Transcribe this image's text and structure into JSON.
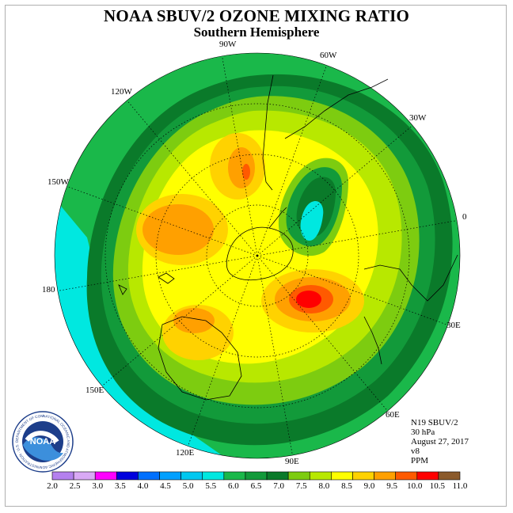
{
  "title": "NOAA SBUV/2 OZONE MIXING RATIO",
  "subtitle": "Southern Hemisphere",
  "longitude_labels": [
    "90W",
    "60W",
    "30W",
    "0",
    "30E",
    "60E",
    "90E",
    "120E",
    "150E",
    "180",
    "150W",
    "120W"
  ],
  "info": {
    "satellite": "N19 SBUV/2",
    "pressure": "30 hPa",
    "date": "August 27, 2017",
    "version": "v8",
    "units": "PPM"
  },
  "colorbar": {
    "labels": [
      "2.0",
      "2.5",
      "3.0",
      "3.5",
      "4.0",
      "4.5",
      "5.0",
      "5.5",
      "6.0",
      "6.5",
      "7.0",
      "7.5",
      "8.0",
      "8.5",
      "9.0",
      "9.5",
      "10.0",
      "10.5",
      "11.0"
    ],
    "colors": [
      "#b480ee",
      "#d9a9f5",
      "#ff00ff",
      "#0000dd",
      "#0070ff",
      "#00a0ff",
      "#00c8f0",
      "#00e8e0",
      "#1ab84a",
      "#129a3a",
      "#0a7a2a",
      "#7dcc10",
      "#b8e800",
      "#ffff00",
      "#ffd200",
      "#ffa000",
      "#ff5a00",
      "#ff0000",
      "#8b5a2b"
    ]
  },
  "logo_text": "NOAA",
  "logo_ring_text": "NATIONAL OCEANIC AND ATMOSPHERIC ADMINISTRATION · U.S. DEPARTMENT OF COMMERCE"
}
